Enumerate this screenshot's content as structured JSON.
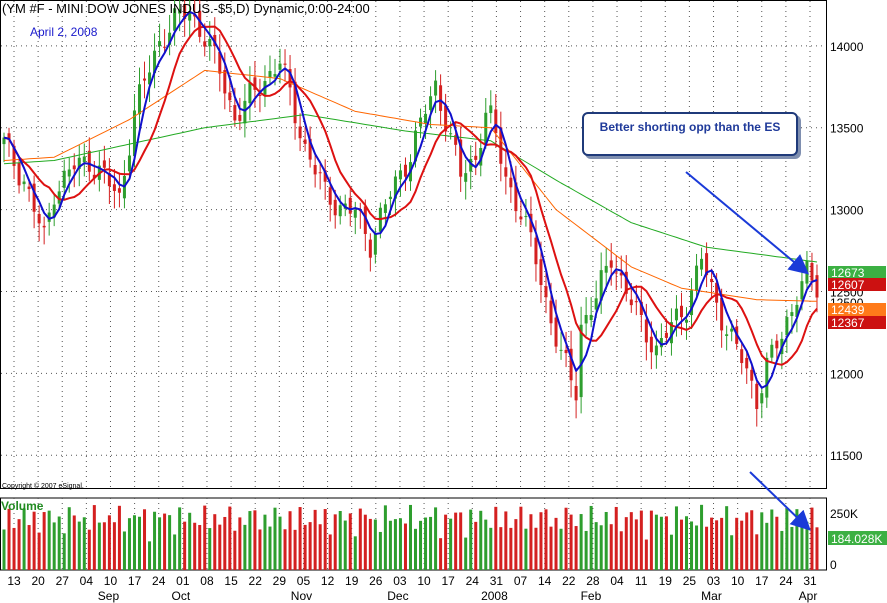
{
  "header": {
    "title": "(YM #F - MINI DOW JONES INDUS.-$5,D) Dynamic,0:00-24:00",
    "date_label": "April 2, 2008",
    "copyright": "Copyright © 2007 eSignal."
  },
  "annotation": {
    "text": "Better shorting opp than the ES"
  },
  "colors": {
    "up_candle": "#2e9e2e",
    "down_candle": "#d42020",
    "ma_blue": "#1010cc",
    "ma_red": "#dd1111",
    "ma_orange": "#ff6600",
    "ma_green": "#22aa22",
    "arrow": "#1a3ad8"
  },
  "chart_data": [
    {
      "type": "candlestick",
      "title": "",
      "ylim": [
        11300,
        14280
      ],
      "y_ticks": [
        "14000",
        "13500",
        "13000",
        "12500",
        "12000",
        "11500"
      ],
      "x_tick_labels": [
        "13",
        "20",
        "27",
        "04",
        "10",
        "17",
        "24",
        "01",
        "08",
        "15",
        "22",
        "29",
        "05",
        "12",
        "19",
        "26",
        "03",
        "10",
        "17",
        "24",
        "31",
        "07",
        "14",
        "22",
        "28",
        "04",
        "11",
        "19",
        "25",
        "03",
        "10",
        "17",
        "24",
        "31"
      ],
      "month_labels": [
        "Sep",
        "Oct",
        "Nov",
        "Dec",
        "2008",
        "Feb",
        "Mar",
        "Apr"
      ],
      "price_path": [
        [
          0,
          13400
        ],
        [
          4,
          13180
        ],
        [
          8,
          12820
        ],
        [
          10,
          13120
        ],
        [
          14,
          13260
        ],
        [
          17,
          13300
        ],
        [
          20,
          13200
        ],
        [
          23,
          13060
        ],
        [
          26,
          13600
        ],
        [
          29,
          13860
        ],
        [
          31,
          14030
        ],
        [
          34,
          14150
        ],
        [
          37,
          14220
        ],
        [
          40,
          14050
        ],
        [
          43,
          13850
        ],
        [
          46,
          13560
        ],
        [
          49,
          13680
        ],
        [
          52,
          13800
        ],
        [
          55,
          13900
        ],
        [
          57,
          13700
        ],
        [
          60,
          13380
        ],
        [
          64,
          13100
        ],
        [
          67,
          13020
        ],
        [
          70,
          12980
        ],
        [
          73,
          12800
        ],
        [
          75,
          12960
        ],
        [
          78,
          13150
        ],
        [
          81,
          13350
        ],
        [
          84,
          13600
        ],
        [
          86,
          13750
        ],
        [
          88,
          13560
        ],
        [
          91,
          13200
        ],
        [
          94,
          13320
        ],
        [
          96,
          13600
        ],
        [
          97,
          13550
        ],
        [
          100,
          13200
        ],
        [
          103,
          12980
        ],
        [
          106,
          12700
        ],
        [
          108,
          12450
        ],
        [
          111,
          12100
        ],
        [
          114,
          11900
        ],
        [
          115,
          12300
        ],
        [
          118,
          12450
        ],
        [
          121,
          12720
        ],
        [
          124,
          12500
        ],
        [
          127,
          12300
        ],
        [
          130,
          12150
        ],
        [
          133,
          12280
        ],
        [
          136,
          12420
        ],
        [
          139,
          12700
        ],
        [
          141,
          12500
        ],
        [
          144,
          12280
        ],
        [
          147,
          12080
        ],
        [
          150,
          11850
        ],
        [
          152,
          12050
        ],
        [
          155,
          12220
        ],
        [
          158,
          12500
        ],
        [
          160,
          12600
        ],
        [
          162,
          12500
        ]
      ],
      "last_values": {
        "ma_green": "12673",
        "close": "12607",
        "ma_orange": "12439",
        "ma_red": "12367"
      },
      "partial_label": "12500",
      "ma_path": {
        "green": [
          [
            0,
            13280
          ],
          [
            10,
            13300
          ],
          [
            25,
            13400
          ],
          [
            40,
            13500
          ],
          [
            60,
            13580
          ],
          [
            80,
            13480
          ],
          [
            97,
            13420
          ],
          [
            110,
            13180
          ],
          [
            125,
            12920
          ],
          [
            140,
            12770
          ],
          [
            162,
            12680
          ]
        ],
        "orange": [
          [
            0,
            13300
          ],
          [
            10,
            13320
          ],
          [
            25,
            13550
          ],
          [
            40,
            13850
          ],
          [
            55,
            13800
          ],
          [
            70,
            13600
          ],
          [
            85,
            13520
          ],
          [
            97,
            13500
          ],
          [
            110,
            13000
          ],
          [
            125,
            12650
          ],
          [
            135,
            12520
          ],
          [
            150,
            12450
          ],
          [
            162,
            12440
          ]
        ]
      }
    },
    {
      "type": "bar",
      "title": "Volume",
      "ylim": [
        0,
        320000
      ],
      "y_ticks": [
        "250K",
        "0"
      ],
      "last_value": "184.028K"
    }
  ]
}
